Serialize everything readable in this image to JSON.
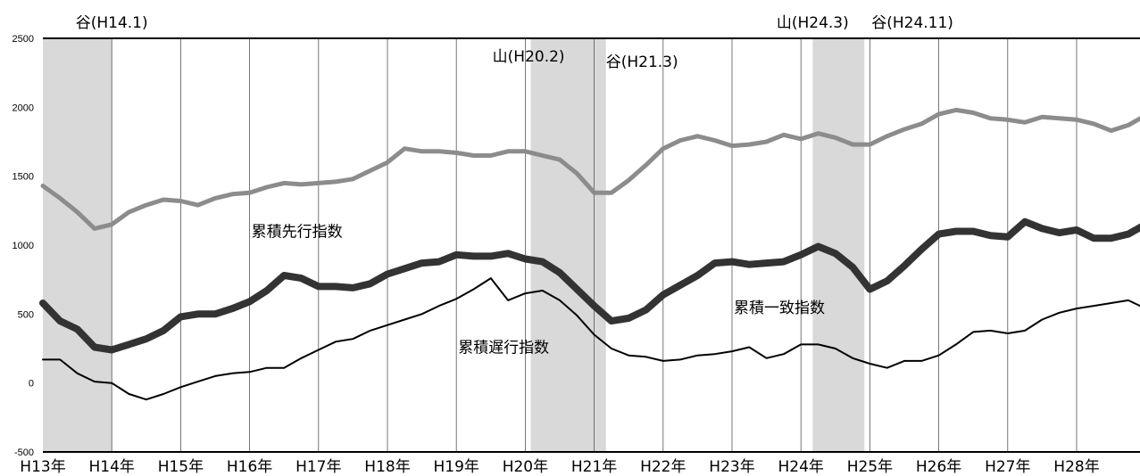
{
  "chart_data": {
    "type": "line",
    "ylim": [
      -500,
      2500
    ],
    "yticks": [
      -500,
      0,
      500,
      1000,
      1500,
      2000,
      2500
    ],
    "ytick_labels": [
      "-500",
      "0",
      "500",
      "1000",
      "1500",
      "2000",
      "2500"
    ],
    "xlim": [
      13.0,
      29.0
    ],
    "year_ticks": [
      {
        "x": 13,
        "label": "H13年"
      },
      {
        "x": 14,
        "label": "H14年"
      },
      {
        "x": 15,
        "label": "H15年"
      },
      {
        "x": 16,
        "label": "H16年"
      },
      {
        "x": 17,
        "label": "H17年"
      },
      {
        "x": 18,
        "label": "H18年"
      },
      {
        "x": 19,
        "label": "H19年"
      },
      {
        "x": 20,
        "label": "H20年"
      },
      {
        "x": 21,
        "label": "H21年"
      },
      {
        "x": 22,
        "label": "H22年"
      },
      {
        "x": 23,
        "label": "H23年"
      },
      {
        "x": 24,
        "label": "H24年"
      },
      {
        "x": 25,
        "label": "H25年"
      },
      {
        "x": 26,
        "label": "H26年"
      },
      {
        "x": 27,
        "label": "H27年"
      },
      {
        "x": 28,
        "label": "H28年"
      }
    ],
    "recessions": [
      {
        "start": 13.0,
        "end": 14.0
      },
      {
        "start": 20.08,
        "end": 21.17
      },
      {
        "start": 24.17,
        "end": 24.92
      }
    ],
    "markers": [
      {
        "x": 14.0,
        "label": "谷(H14.1)"
      },
      {
        "x": 20.08,
        "label": "山(H20.2)"
      },
      {
        "x": 21.17,
        "label": "谷(H21.3)"
      },
      {
        "x": 24.17,
        "label": "山(H24.3)"
      },
      {
        "x": 24.92,
        "label": "谷(H24.11)"
      }
    ],
    "series": [
      {
        "name": "累積先行指数",
        "color": "#8c8c8c",
        "style": "gray-medium",
        "x": [
          13.0,
          13.25,
          13.5,
          13.75,
          14.0,
          14.25,
          14.5,
          14.75,
          15.0,
          15.25,
          15.5,
          15.75,
          16.0,
          16.25,
          16.5,
          16.75,
          17.0,
          17.25,
          17.5,
          17.75,
          18.0,
          18.25,
          18.5,
          18.75,
          19.0,
          19.25,
          19.5,
          19.75,
          20.0,
          20.25,
          20.5,
          20.75,
          21.0,
          21.25,
          21.5,
          21.75,
          22.0,
          22.25,
          22.5,
          22.75,
          23.0,
          23.25,
          23.5,
          23.75,
          24.0,
          24.25,
          24.5,
          24.75,
          25.0,
          25.25,
          25.5,
          25.75,
          26.0,
          26.25,
          26.5,
          26.75,
          27.0,
          27.25,
          27.5,
          27.75,
          28.0,
          28.25,
          28.5,
          28.75,
          29.0
        ],
        "values": [
          1430,
          1340,
          1240,
          1120,
          1150,
          1240,
          1290,
          1330,
          1320,
          1290,
          1340,
          1370,
          1380,
          1420,
          1450,
          1440,
          1450,
          1460,
          1480,
          1540,
          1600,
          1700,
          1680,
          1680,
          1670,
          1650,
          1650,
          1680,
          1680,
          1650,
          1620,
          1520,
          1380,
          1380,
          1470,
          1580,
          1700,
          1760,
          1790,
          1760,
          1720,
          1730,
          1750,
          1800,
          1770,
          1810,
          1780,
          1730,
          1730,
          1790,
          1840,
          1880,
          1950,
          1980,
          1960,
          1920,
          1910,
          1890,
          1930,
          1920,
          1910,
          1880,
          1830,
          1870,
          1940
        ]
      },
      {
        "name": "累積一致指数",
        "color": "#333333",
        "style": "dark-thick",
        "x": [
          13.0,
          13.25,
          13.5,
          13.75,
          14.0,
          14.25,
          14.5,
          14.75,
          15.0,
          15.25,
          15.5,
          15.75,
          16.0,
          16.25,
          16.5,
          16.75,
          17.0,
          17.25,
          17.5,
          17.75,
          18.0,
          18.25,
          18.5,
          18.75,
          19.0,
          19.25,
          19.5,
          19.75,
          20.0,
          20.25,
          20.5,
          20.75,
          21.0,
          21.25,
          21.5,
          21.75,
          22.0,
          22.25,
          22.5,
          22.75,
          23.0,
          23.25,
          23.5,
          23.75,
          24.0,
          24.25,
          24.5,
          24.75,
          25.0,
          25.25,
          25.5,
          25.75,
          26.0,
          26.25,
          26.5,
          26.75,
          27.0,
          27.25,
          27.5,
          27.75,
          28.0,
          28.25,
          28.5,
          28.75,
          29.0
        ],
        "values": [
          580,
          450,
          390,
          260,
          240,
          280,
          320,
          380,
          480,
          500,
          500,
          540,
          590,
          670,
          780,
          760,
          700,
          700,
          690,
          720,
          790,
          830,
          870,
          880,
          930,
          920,
          920,
          940,
          900,
          880,
          800,
          680,
          560,
          450,
          470,
          530,
          640,
          710,
          780,
          870,
          880,
          860,
          870,
          880,
          930,
          990,
          940,
          840,
          680,
          740,
          850,
          970,
          1080,
          1100,
          1100,
          1070,
          1060,
          1170,
          1120,
          1090,
          1110,
          1050,
          1050,
          1080,
          1150
        ]
      },
      {
        "name": "累積遅行指数",
        "color": "#000000",
        "style": "black-thin",
        "x": [
          13.0,
          13.25,
          13.5,
          13.75,
          14.0,
          14.25,
          14.5,
          14.75,
          15.0,
          15.25,
          15.5,
          15.75,
          16.0,
          16.25,
          16.5,
          16.75,
          17.0,
          17.25,
          17.5,
          17.75,
          18.0,
          18.25,
          18.5,
          18.75,
          19.0,
          19.25,
          19.5,
          19.75,
          20.0,
          20.25,
          20.5,
          20.75,
          21.0,
          21.25,
          21.5,
          21.75,
          22.0,
          22.25,
          22.5,
          22.75,
          23.0,
          23.25,
          23.5,
          23.75,
          24.0,
          24.25,
          24.5,
          24.75,
          25.0,
          25.25,
          25.5,
          25.75,
          26.0,
          26.25,
          26.5,
          26.75,
          27.0,
          27.25,
          27.5,
          27.75,
          28.0,
          28.25,
          28.5,
          28.75,
          29.0
        ],
        "values": [
          170,
          170,
          70,
          10,
          0,
          -80,
          -120,
          -80,
          -30,
          10,
          50,
          70,
          80,
          110,
          110,
          180,
          240,
          300,
          320,
          380,
          420,
          460,
          500,
          560,
          610,
          680,
          760,
          600,
          650,
          670,
          600,
          490,
          350,
          250,
          200,
          190,
          160,
          170,
          200,
          210,
          230,
          260,
          180,
          210,
          280,
          280,
          250,
          180,
          140,
          110,
          160,
          160,
          200,
          280,
          370,
          380,
          360,
          380,
          460,
          510,
          540,
          560,
          580,
          600,
          540
        ]
      }
    ],
    "series_labels": [
      {
        "series": 0,
        "text": "累積先行指数",
        "x": 16.0,
        "y": 1060
      },
      {
        "series": 2,
        "text": "累積遅行指数",
        "x": 19.0,
        "y": 220
      },
      {
        "series": 1,
        "text": "累積一致指数",
        "x": 23.0,
        "y": 510
      }
    ]
  }
}
